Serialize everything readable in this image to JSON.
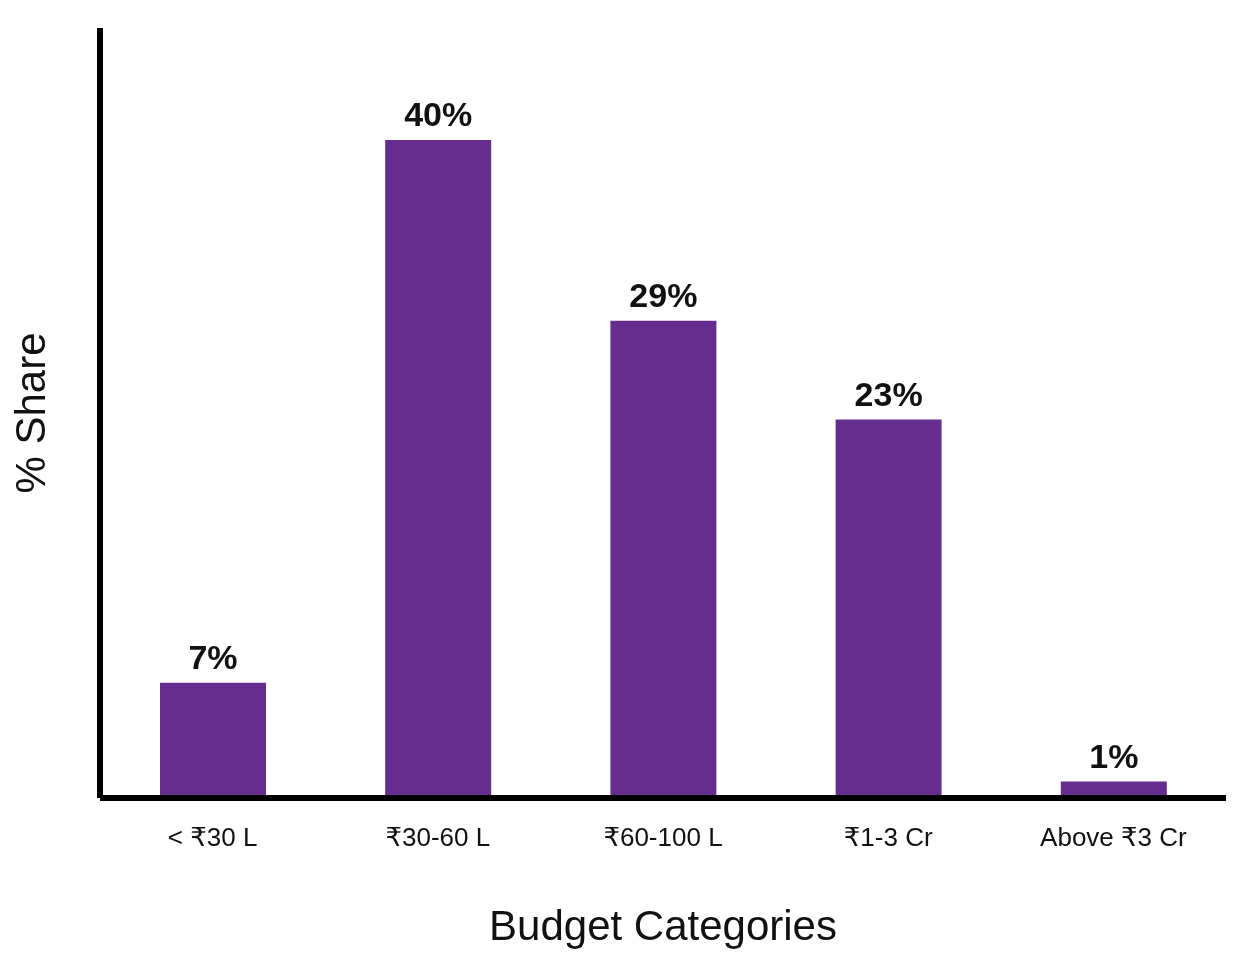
{
  "chart_data": {
    "type": "bar",
    "xlabel": "Budget Categories",
    "ylabel": "% Share",
    "categories": [
      "< ₹30 L",
      "₹30-60 L",
      "₹60-100 L",
      "₹1-3 Cr",
      "Above ₹3 Cr"
    ],
    "values": [
      7,
      40,
      29,
      23,
      1
    ],
    "value_labels": [
      "7%",
      "40%",
      "29%",
      "23%",
      "1%"
    ],
    "color": "#642d8e",
    "grid": false,
    "legend": false
  }
}
